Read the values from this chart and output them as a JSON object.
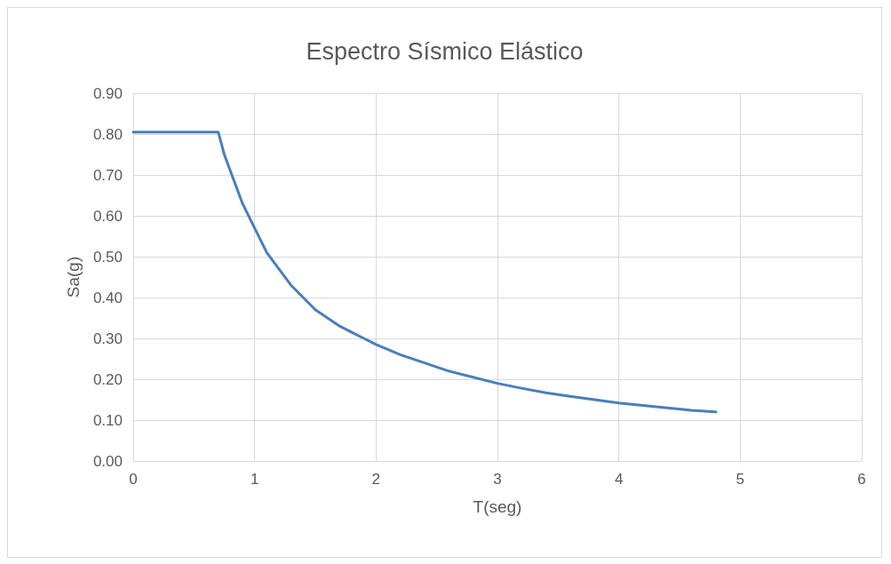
{
  "chart_data": {
    "type": "line",
    "title": "Espectro Sísmico Elástico",
    "xlabel": "T(seg)",
    "ylabel": "Sa(g)",
    "series": [
      {
        "color": "#4a7ebb",
        "x": [
          0,
          0.1,
          0.2,
          0.3,
          0.4,
          0.5,
          0.6,
          0.7,
          0.75,
          0.8,
          0.85,
          0.9,
          1.0,
          1.1,
          1.2,
          1.3,
          1.4,
          1.5,
          1.6,
          1.7,
          1.8,
          1.9,
          2.0,
          2.2,
          2.4,
          2.6,
          2.8,
          3.0,
          3.2,
          3.4,
          3.6,
          3.8,
          4.0,
          4.2,
          4.4,
          4.6,
          4.8
        ],
        "values": [
          0.805,
          0.805,
          0.805,
          0.805,
          0.805,
          0.805,
          0.805,
          0.805,
          0.75,
          0.71,
          0.67,
          0.63,
          0.57,
          0.51,
          0.47,
          0.43,
          0.4,
          0.37,
          0.35,
          0.33,
          0.315,
          0.3,
          0.285,
          0.26,
          0.24,
          0.22,
          0.205,
          0.19,
          0.178,
          0.167,
          0.158,
          0.15,
          0.142,
          0.136,
          0.13,
          0.124,
          0.12
        ]
      }
    ],
    "xlim": [
      0,
      6
    ],
    "xticks": [
      0,
      1,
      2,
      3,
      4,
      5,
      6
    ],
    "ylim": [
      0,
      0.9
    ],
    "yticks": [
      {
        "value": 0,
        "label": "0.00"
      },
      {
        "value": 0.1,
        "label": "0.10"
      },
      {
        "value": 0.2,
        "label": "0.20"
      },
      {
        "value": 0.3,
        "label": "0.30"
      },
      {
        "value": 0.4,
        "label": "0.40"
      },
      {
        "value": 0.5,
        "label": "0.50"
      },
      {
        "value": 0.6,
        "label": "0.60"
      },
      {
        "value": 0.7,
        "label": "0.70"
      },
      {
        "value": 0.8,
        "label": "0.80"
      },
      {
        "value": 0.9,
        "label": "0.90"
      }
    ],
    "grid": true,
    "marker": "none",
    "line_style": "solid"
  }
}
